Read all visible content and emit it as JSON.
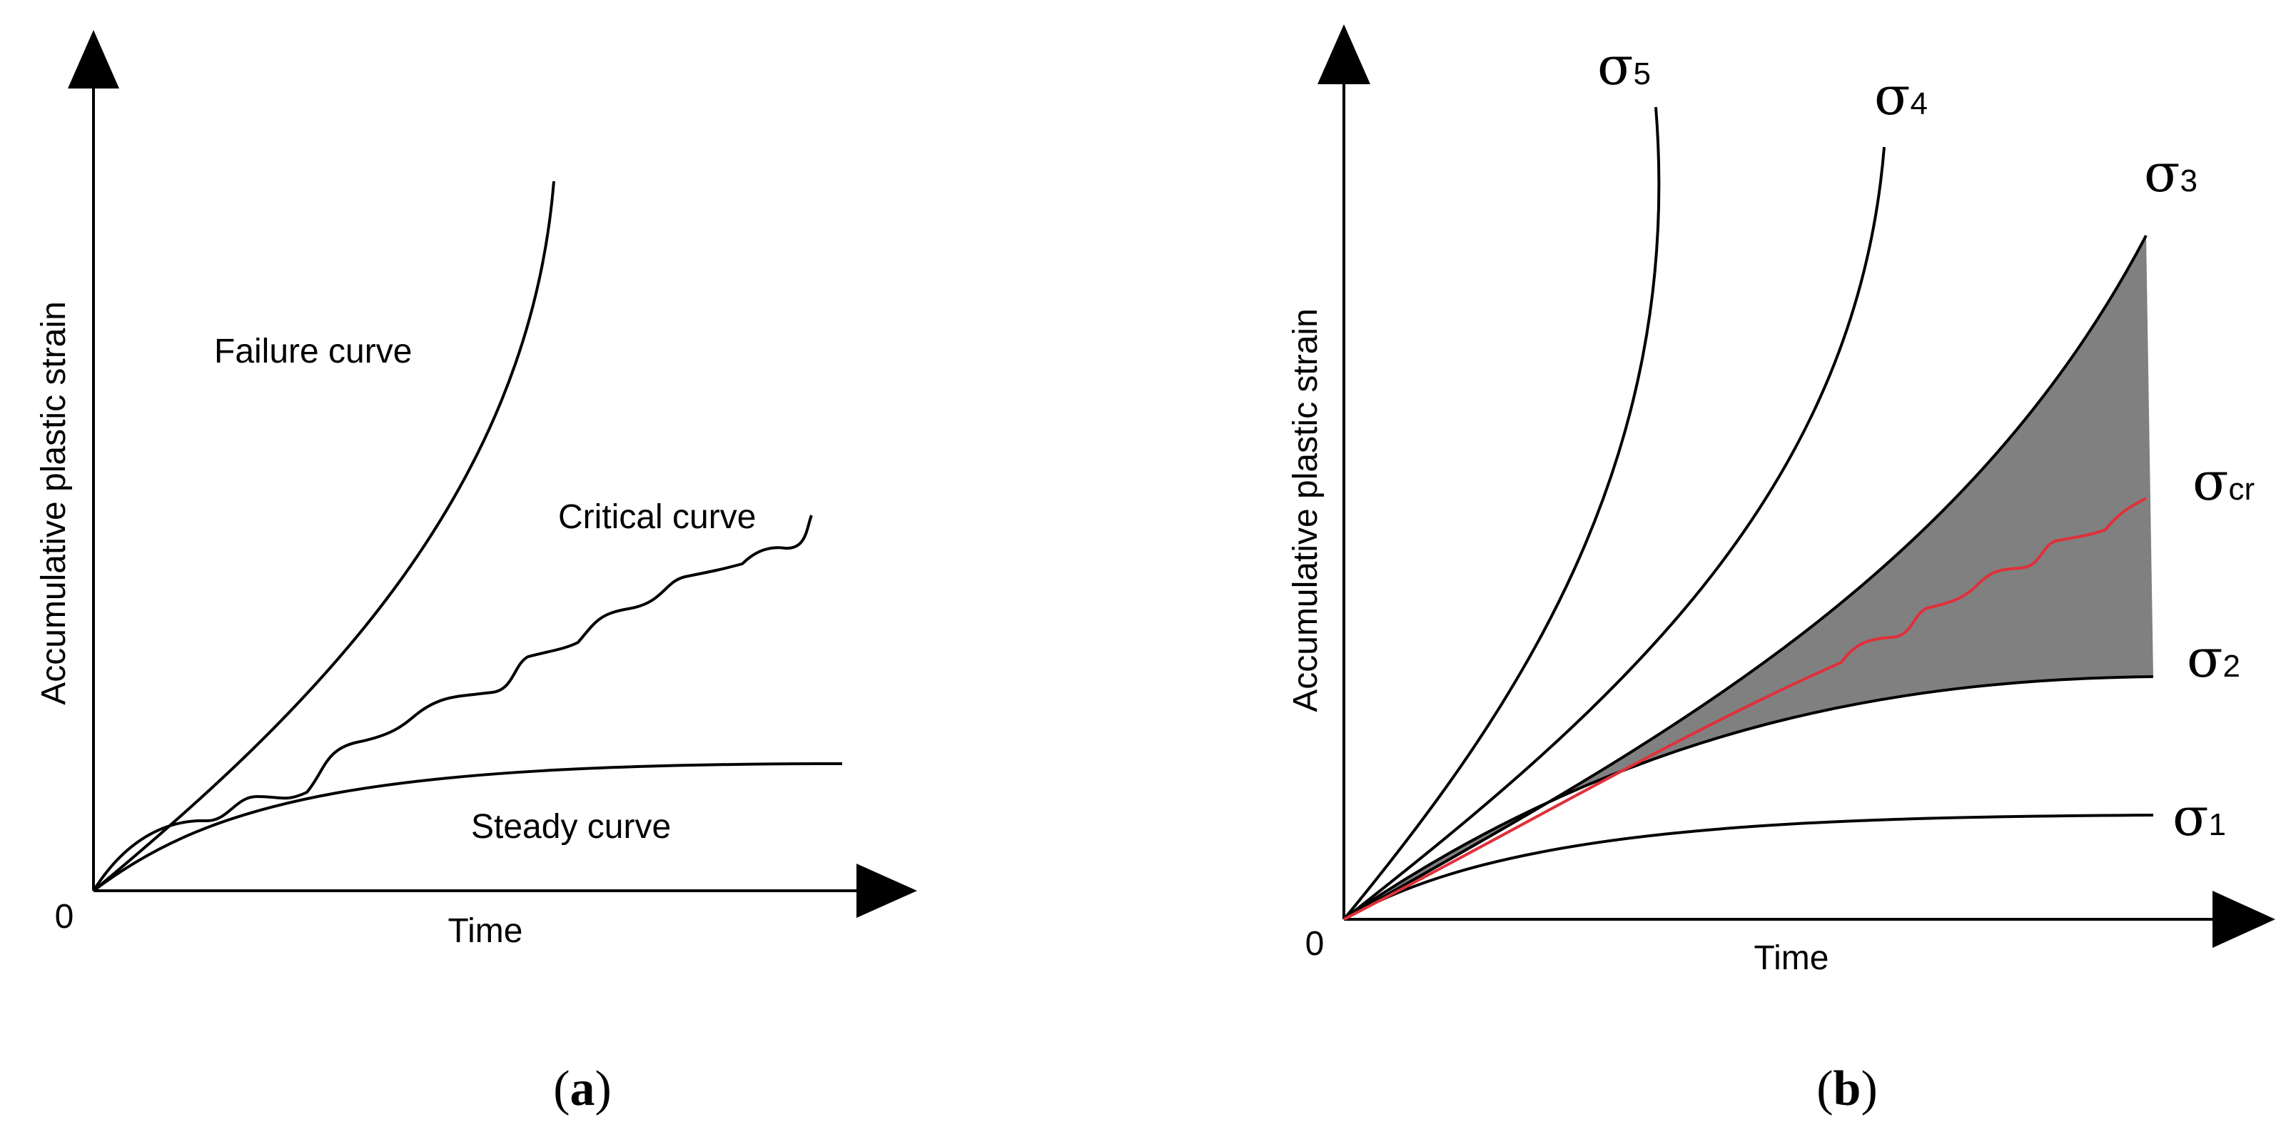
{
  "panel_a": {
    "ylabel": "Accumulative plastic strain",
    "xlabel": "Time",
    "origin": "0",
    "curves": {
      "failure": "Failure curve",
      "critical": "Critical curve",
      "steady": "Steady curve"
    },
    "caption_open": "(",
    "caption_letter": "a",
    "caption_close": ")"
  },
  "panel_b": {
    "ylabel": "Accumulative plastic strain",
    "xlabel": "Time",
    "origin": "0",
    "sigma_symbol": "σ",
    "curves": [
      {
        "sub": "5"
      },
      {
        "sub": "4"
      },
      {
        "sub": "3"
      },
      {
        "sub": "cr"
      },
      {
        "sub": "2"
      },
      {
        "sub": "1"
      }
    ],
    "caption_open": "(",
    "caption_letter": "b",
    "caption_close": ")",
    "colors": {
      "critical_curve": "#e0303a",
      "shaded_region": "#808080"
    }
  }
}
